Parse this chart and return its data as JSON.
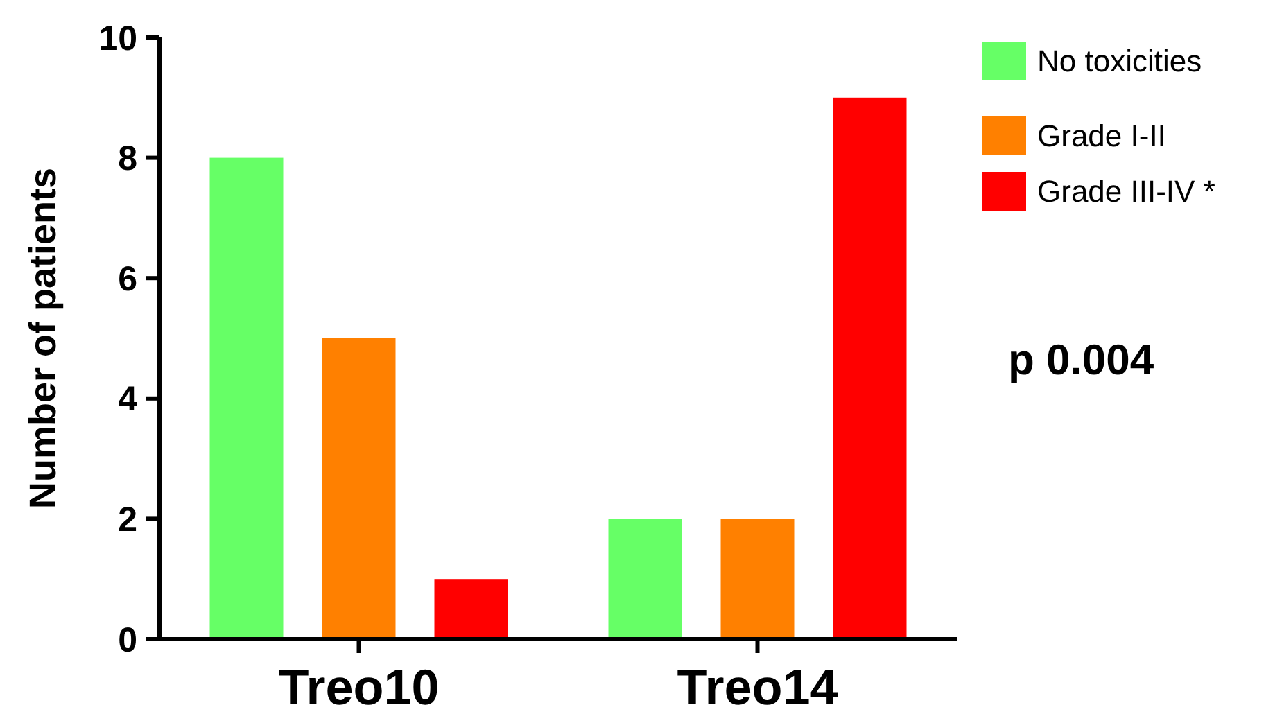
{
  "chart_data": {
    "type": "bar",
    "ylabel": "Number of patients",
    "categories": [
      "Treo10",
      "Treo14"
    ],
    "series": [
      {
        "name": "No toxicities",
        "color": "#66ff66",
        "values": [
          8,
          2
        ]
      },
      {
        "name": "Grade I-II",
        "color": "#ff8000",
        "values": [
          5,
          2
        ]
      },
      {
        "name": "Grade III-IV *",
        "color": "#ff0000",
        "values": [
          1,
          9
        ]
      }
    ],
    "ylim": [
      0,
      10
    ],
    "yticks": [
      0,
      2,
      4,
      6,
      8,
      10
    ],
    "grid": false,
    "legend": "top right",
    "annotations": [
      "p 0.004"
    ]
  }
}
